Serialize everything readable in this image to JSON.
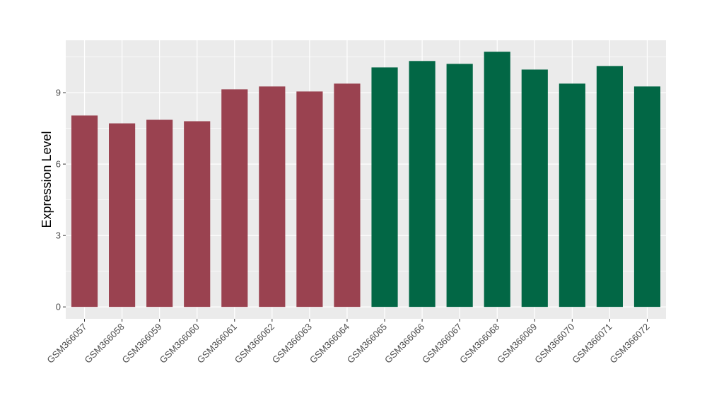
{
  "chart_data": {
    "type": "bar",
    "title": "",
    "xlabel": "",
    "ylabel": "Expression Level",
    "ylim": [
      -0.5,
      11.2
    ],
    "yticks": [
      0,
      3,
      6,
      9
    ],
    "grid": true,
    "background": "#EBEBEB",
    "categories": [
      "GSM366057",
      "GSM366058",
      "GSM366059",
      "GSM366060",
      "GSM366061",
      "GSM366062",
      "GSM366063",
      "GSM366064",
      "GSM366065",
      "GSM366066",
      "GSM366067",
      "GSM366068",
      "GSM366069",
      "GSM366070",
      "GSM366071",
      "GSM366072"
    ],
    "values": [
      8.04,
      7.71,
      7.86,
      7.8,
      9.14,
      9.26,
      9.05,
      9.38,
      10.06,
      10.33,
      10.21,
      10.72,
      9.97,
      9.38,
      10.12,
      9.26
    ],
    "colors": [
      "#9A4250",
      "#9A4250",
      "#9A4250",
      "#9A4250",
      "#9A4250",
      "#9A4250",
      "#9A4250",
      "#9A4250",
      "#026745",
      "#026745",
      "#026745",
      "#026745",
      "#026745",
      "#026745",
      "#026745",
      "#026745"
    ]
  }
}
